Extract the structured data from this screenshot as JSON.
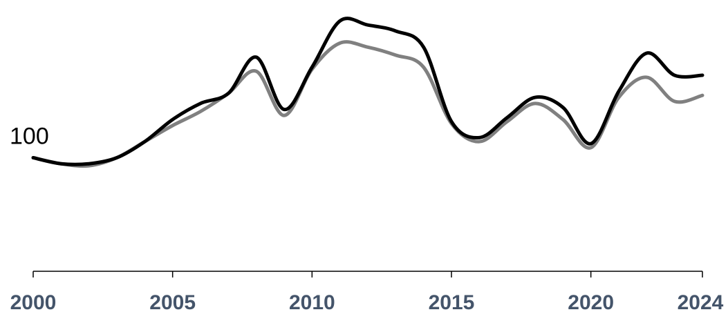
{
  "chart_data": {
    "type": "line",
    "title": "",
    "xlabel": "",
    "ylabel": "",
    "xlim": [
      2000,
      2024
    ],
    "ylim": [
      60,
      175
    ],
    "x_ticks": [
      2000,
      2005,
      2010,
      2015,
      2020,
      2024
    ],
    "x_tick_labels": [
      "2000",
      "2005",
      "2010",
      "2015",
      "2020",
      "2024"
    ],
    "y_axis_visible": false,
    "grid": false,
    "legend": "none",
    "annotations": [
      {
        "text": "100",
        "x": 2000,
        "y": 100
      }
    ],
    "colors": {
      "axis": "#000000",
      "tick_label": "#44546a",
      "annotation": "#000000"
    },
    "series": [
      {
        "color": "#000000",
        "x": [
          2000,
          2001,
          2002,
          2003,
          2004,
          2005,
          2006,
          2007,
          2008,
          2009,
          2010,
          2011,
          2012,
          2013,
          2014,
          2015,
          2016,
          2017,
          2018,
          2019,
          2020,
          2021,
          2022,
          2023,
          2024
        ],
        "y": [
          100,
          97,
          97,
          100,
          108,
          119,
          127,
          132,
          150,
          124,
          145,
          168,
          166,
          163,
          155,
          118,
          110,
          120,
          130,
          125,
          107,
          133,
          152,
          141,
          141
        ]
      },
      {
        "color": "#808080",
        "x": [
          2000,
          2001,
          2002,
          2003,
          2004,
          2005,
          2006,
          2007,
          2008,
          2009,
          2010,
          2011,
          2012,
          2013,
          2014,
          2015,
          2016,
          2017,
          2018,
          2019,
          2020,
          2021,
          2022,
          2023,
          2024
        ],
        "y": [
          100,
          97,
          96,
          100,
          108,
          116,
          123,
          132,
          143,
          121,
          144,
          157,
          155,
          151,
          145,
          117,
          108,
          118,
          127,
          119,
          105,
          130,
          140,
          128,
          131
        ]
      }
    ]
  }
}
